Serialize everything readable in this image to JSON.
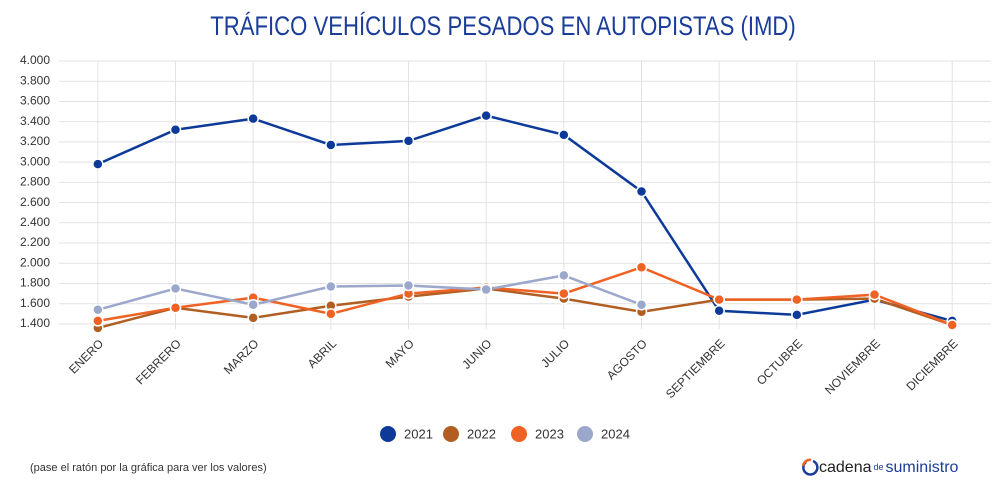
{
  "chart_data": {
    "type": "line",
    "title": "TRÁFICO VEHÍCULOS PESADOS EN AUTOPISTAS (IMD)",
    "categories": [
      "ENERO",
      "FEBRERO",
      "MARZO",
      "ABRIL",
      "MAYO",
      "JUNIO",
      "JULIO",
      "AGOSTO",
      "SEPTIEMBRE",
      "OCTUBRE",
      "NOVIEMBRE",
      "DICIEMBRE"
    ],
    "series": [
      {
        "name": "2021",
        "color": "#0d3a99",
        "values": [
          2980,
          3320,
          3430,
          3170,
          3210,
          3460,
          3270,
          2710,
          1530,
          1490,
          1640,
          1430
        ]
      },
      {
        "name": "2022",
        "color": "#b05e22",
        "values": [
          1360,
          1560,
          1460,
          1580,
          1670,
          1750,
          1650,
          1520,
          1640,
          1640,
          1650,
          1390
        ]
      },
      {
        "name": "2023",
        "color": "#f06124",
        "values": [
          1430,
          1560,
          1660,
          1500,
          1700,
          1760,
          1700,
          1960,
          1640,
          1640,
          1690,
          1390
        ]
      },
      {
        "name": "2024",
        "color": "#9ba8cc",
        "values": [
          1540,
          1750,
          1590,
          1770,
          1780,
          1740,
          1880,
          1590,
          null,
          null,
          null,
          null
        ]
      }
    ],
    "ylim": [
      1350,
      4000
    ],
    "yticks": [
      {
        "value": 1400,
        "label": "1.400"
      },
      {
        "value": 1600,
        "label": "1.600"
      },
      {
        "value": 1800,
        "label": "1.800"
      },
      {
        "value": 2000,
        "label": "2.000"
      },
      {
        "value": 2200,
        "label": "2.200"
      },
      {
        "value": 2400,
        "label": "2.400"
      },
      {
        "value": 2600,
        "label": "2.600"
      },
      {
        "value": 2800,
        "label": "2.800"
      },
      {
        "value": 3000,
        "label": "3.000"
      },
      {
        "value": 3200,
        "label": "3.200"
      },
      {
        "value": 3400,
        "label": "3.400"
      },
      {
        "value": 3600,
        "label": "3.600"
      },
      {
        "value": 3800,
        "label": "3.800"
      },
      {
        "value": 4000,
        "label": "4.000"
      }
    ],
    "grid": true,
    "note": "(pase el ratón por la gráfica para ver los valores)",
    "logo": {
      "main": "cadena",
      "small": "de",
      "end": "suministro"
    }
  }
}
